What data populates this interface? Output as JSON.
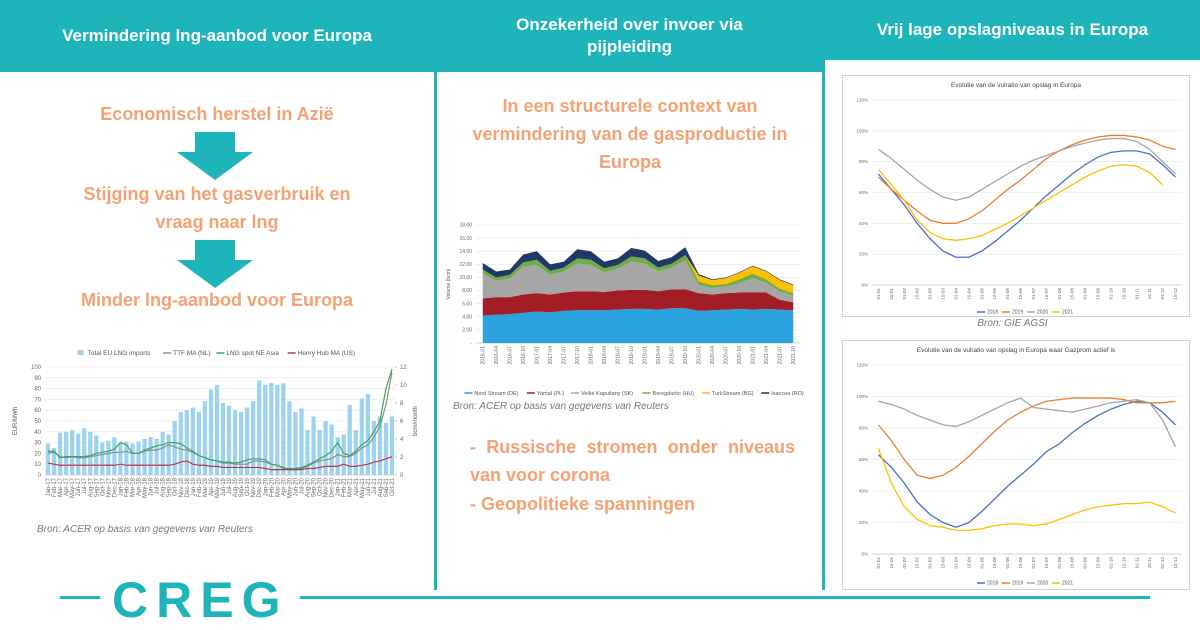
{
  "panels": [
    {
      "header": "Vermindering lng-aanbod voor Europa",
      "flow": [
        "Economisch herstel in Azië",
        "Stijging van het gasverbruik en vraag naar lng",
        "Minder lng-aanbod voor Europa"
      ],
      "source": "Bron: ACER op basis van gegevens van Reuters"
    },
    {
      "header": "Onzekerheid over invoer via pijpleiding",
      "intro": "In een structurele context van vermindering van de gasproductie in Europa",
      "source": "Bron: ACER op basis van gegevens van Reuters",
      "bullets": [
        "- Russische stromen onder niveaus van voor corona",
        "- Geopolitieke spanningen"
      ]
    },
    {
      "header": "Vrij lage opslagniveaus in Europa",
      "source": "Bron: GIE AGSI"
    }
  ],
  "logo": "CREG",
  "chart_data": [
    {
      "type": "bar_line",
      "legend": "top",
      "grid": true,
      "ylabel": "EUR/MWh",
      "y2label": "bcm/month",
      "ylim": [
        0,
        100
      ],
      "yticks": [
        0,
        10,
        20,
        30,
        40,
        50,
        60,
        70,
        80,
        90,
        100
      ],
      "y2lim": [
        0,
        12
      ],
      "y2ticks": [
        0,
        2,
        4,
        6,
        8,
        10,
        12
      ],
      "categories": [
        "Jan-17",
        "Feb-17",
        "Mar-17",
        "Apr-17",
        "May-17",
        "Jun-17",
        "Jul-17",
        "Aug-17",
        "Sep-17",
        "Oct-17",
        "Nov-17",
        "Dec-17",
        "Jan-18",
        "Feb-18",
        "Mar-18",
        "Apr-18",
        "May-18",
        "Jun-18",
        "Jul-18",
        "Aug-18",
        "Sep-18",
        "Oct-18",
        "Nov-18",
        "Dec-18",
        "Jan-19",
        "Feb-19",
        "Mar-19",
        "Apr-19",
        "May-19",
        "Jun-19",
        "Jul-19",
        "Aug-19",
        "Sep-19",
        "Oct-19",
        "Nov-19",
        "Dec-19",
        "Jan-20",
        "Feb-20",
        "Mar-20",
        "Apr-20",
        "May-20",
        "Jun-20",
        "Jul-20",
        "Aug-20",
        "Sep-20",
        "Oct-20",
        "Nov-20",
        "Dec-20",
        "Jan-21",
        "Feb-21",
        "Mar-21",
        "Apr-21",
        "May-21",
        "Jun-21",
        "Jul-21",
        "Aug-21",
        "Sep-21",
        "Oct-21"
      ],
      "series": [
        {
          "name": "Total EU LNG imports",
          "color": "#9dd3f0",
          "type": "bar",
          "axis": "y2",
          "values": [
            3.5,
            3,
            4.7,
            4.8,
            5,
            4.6,
            5.2,
            4.8,
            4.4,
            3.6,
            3.8,
            4.2,
            3.6,
            3.7,
            3.5,
            3.7,
            4,
            4.2,
            4,
            4.8,
            4.5,
            6,
            7,
            7.2,
            7.5,
            7,
            8.2,
            9.5,
            10,
            8,
            7.7,
            7.2,
            7,
            7.5,
            8.2,
            10.5,
            10,
            10.2,
            10,
            10.2,
            8.2,
            7,
            7.4,
            5,
            6.5,
            5,
            6,
            5.6,
            4.2,
            4.5,
            7.8,
            5,
            8.5,
            9,
            6,
            6.5,
            5.8,
            6.5
          ]
        },
        {
          "name": "TTF MA (NL)",
          "color": "#8c8c8c",
          "type": "line",
          "values": [
            20,
            21,
            17,
            16,
            17,
            16,
            16,
            17,
            18,
            19,
            20,
            21,
            21,
            22,
            20,
            20,
            22,
            23,
            23,
            25,
            28,
            26,
            24,
            23,
            21,
            18,
            16,
            14,
            13,
            11,
            11,
            10,
            10,
            10,
            13,
            13,
            12,
            10,
            9,
            7,
            5,
            5,
            6,
            8,
            11,
            13,
            14,
            15,
            19,
            17,
            17,
            20,
            25,
            28,
            35,
            45,
            65,
            95
          ]
        },
        {
          "name": "LNG spot NE Asia",
          "color": "#3aa85a",
          "type": "line",
          "values": [
            22,
            22,
            16,
            17,
            17,
            17,
            17,
            18,
            20,
            21,
            22,
            24,
            30,
            28,
            20,
            20,
            23,
            25,
            27,
            28,
            30,
            30,
            29,
            25,
            22,
            18,
            16,
            14,
            13,
            12,
            12,
            11,
            12,
            14,
            15,
            15,
            14,
            10,
            9,
            6,
            6,
            6,
            7,
            9,
            12,
            15,
            18,
            22,
            30,
            20,
            18,
            22,
            28,
            32,
            40,
            50,
            80,
            98
          ]
        },
        {
          "name": "Henry Hub MA (US)",
          "color": "#c0334b",
          "type": "line",
          "values": [
            11,
            10,
            9,
            9,
            9,
            9,
            9,
            9,
            9,
            9,
            9,
            9,
            10,
            9,
            9,
            9,
            9,
            9,
            9,
            9,
            9,
            10,
            12,
            13,
            10,
            9,
            9,
            8,
            8,
            7,
            7,
            7,
            7,
            7,
            7,
            7,
            6,
            5,
            5,
            5,
            5,
            5,
            5,
            6,
            6,
            7,
            8,
            8,
            8,
            10,
            8,
            8,
            9,
            10,
            12,
            13,
            15,
            17
          ]
        }
      ]
    },
    {
      "type": "stacked_area",
      "legend": "bottom",
      "grid": true,
      "ylabel": "Volume (bcm)",
      "ylim": [
        0,
        18
      ],
      "yticks": [
        {
          "value": 0,
          "label": "-"
        },
        {
          "value": 2,
          "label": "2.00"
        },
        {
          "value": 4,
          "label": "4.00"
        },
        {
          "value": 6,
          "label": "6.00"
        },
        {
          "value": 8,
          "label": "8.00"
        },
        {
          "value": 10,
          "label": "10.00"
        },
        {
          "value": 12,
          "label": "12.00"
        },
        {
          "value": 14,
          "label": "14.00"
        },
        {
          "value": 16,
          "label": "16.00"
        },
        {
          "value": 18,
          "label": "18.00"
        }
      ],
      "categories": [
        "2016-01",
        "2016-04",
        "2016-07",
        "2016-10",
        "2017-01",
        "2017-04",
        "2017-07",
        "2017-10",
        "2018-01",
        "2018-04",
        "2018-07",
        "2018-10",
        "2019-01",
        "2019-04",
        "2019-07",
        "2019-10",
        "2020-01",
        "2020-04",
        "2020-07",
        "2020-10",
        "2021-01",
        "2021-04",
        "2021-07",
        "2021-10"
      ],
      "series": [
        {
          "name": "Nord Stream (DE)",
          "color": "#2ba3de",
          "values": [
            4.2,
            4.3,
            4.4,
            4.6,
            4.8,
            4.7,
            4.9,
            5,
            5,
            5,
            5.1,
            5.2,
            5.2,
            5.1,
            5.3,
            5.3,
            4.9,
            5,
            5.1,
            5.2,
            5.1,
            5.2,
            5.1,
            5.0
          ]
        },
        {
          "name": "Yamal (PL)",
          "color": "#a31d24",
          "values": [
            2.6,
            2.7,
            2.6,
            2.8,
            2.8,
            2.7,
            2.8,
            2.9,
            2.9,
            2.8,
            2.9,
            2.9,
            2.9,
            2.8,
            2.9,
            2.9,
            2.7,
            2.4,
            2.5,
            2.5,
            2.6,
            2.5,
            1.5,
            1.2
          ]
        },
        {
          "name": "Velké Kapušany (SK)",
          "color": "#a6a6a6",
          "values": [
            3.8,
            2.5,
            2.8,
            4.2,
            4.3,
            3,
            3.2,
            4.2,
            4,
            3,
            3.3,
            4.3,
            4,
            3,
            3.3,
            4.4,
            1.2,
            1,
            1,
            1.4,
            2.2,
            1.5,
            1.2,
            1.0
          ]
        },
        {
          "name": "Beregdaróc (HU)",
          "color": "#70ad47",
          "values": [
            0.6,
            0.5,
            0.6,
            0.7,
            0.8,
            0.6,
            0.6,
            0.8,
            0.8,
            0.6,
            0.6,
            0.8,
            0.8,
            0.6,
            0.6,
            0.8,
            0.6,
            0.4,
            0.4,
            0.6,
            0.7,
            0.5,
            0.5,
            0.4
          ]
        },
        {
          "name": "TurkStream (BG)",
          "color": "#ffc000",
          "values": [
            0,
            0,
            0,
            0,
            0,
            0,
            0,
            0,
            0,
            0,
            0,
            0,
            0,
            0,
            0,
            0,
            0.9,
            0.8,
            0.9,
            1,
            1.1,
            1.2,
            1.3,
            1.2
          ]
        },
        {
          "name": "Isaccea (RO)",
          "color": "#1f3864",
          "values": [
            1,
            0.9,
            0.8,
            1.2,
            1.3,
            1,
            0.9,
            1.4,
            1.3,
            1,
            1,
            1.3,
            1.2,
            1,
            1,
            1.2,
            0.2,
            0.1,
            0.1,
            0.1,
            0.1,
            0.1,
            0.1,
            0.1
          ]
        }
      ]
    },
    {
      "type": "line",
      "legend": "bottom",
      "grid": true,
      "title": "Evolutie van de vulratio van opslag in Europa",
      "ylim": [
        0,
        120
      ],
      "yticks": [
        {
          "value": 0,
          "label": "0%"
        },
        {
          "value": 20,
          "label": "20%"
        },
        {
          "value": 40,
          "label": "40%"
        },
        {
          "value": 60,
          "label": "60%"
        },
        {
          "value": 80,
          "label": "80%"
        },
        {
          "value": 100,
          "label": "100%"
        },
        {
          "value": 120,
          "label": "120%"
        }
      ],
      "categories": [
        "01-01",
        "15-01",
        "01-02",
        "15-02",
        "01-03",
        "15-03",
        "01-04",
        "15-04",
        "01-05",
        "15-05",
        "01-06",
        "15-06",
        "01-07",
        "15-07",
        "01-08",
        "15-08",
        "01-09",
        "15-09",
        "01-10",
        "15-10",
        "01-11",
        "15-11",
        "01-12",
        "15-12"
      ],
      "series": [
        {
          "name": "2018",
          "color": "#4472c4",
          "values": [
            72,
            62,
            52,
            40,
            30,
            22,
            18,
            18,
            22,
            28,
            35,
            42,
            50,
            58,
            65,
            72,
            78,
            83,
            86,
            87,
            87,
            85,
            78,
            70
          ]
        },
        {
          "name": "2019",
          "color": "#ed7d31",
          "values": [
            70,
            62,
            55,
            48,
            42,
            40,
            40,
            43,
            48,
            55,
            62,
            68,
            75,
            82,
            87,
            91,
            94,
            96,
            97,
            97,
            96,
            94,
            90,
            88
          ]
        },
        {
          "name": "2020",
          "color": "#a5a5a5",
          "values": [
            88,
            82,
            75,
            68,
            62,
            57,
            55,
            57,
            62,
            67,
            72,
            77,
            81,
            84,
            87,
            90,
            92,
            94,
            95,
            95,
            93,
            88,
            80,
            72
          ]
        },
        {
          "name": "2021",
          "color": "#ffc000",
          "values": [
            75,
            65,
            55,
            42,
            34,
            30,
            29,
            30,
            32,
            36,
            40,
            45,
            50,
            55,
            60,
            65,
            70,
            74,
            77,
            78,
            77,
            73,
            65,
            null
          ]
        }
      ]
    },
    {
      "type": "line",
      "legend": "bottom",
      "grid": true,
      "title": "Evolutie van de vulratio van opslag in Europa waar Gazprom actief is",
      "ylim": [
        0,
        120
      ],
      "yticks": [
        {
          "value": 0,
          "label": "0%"
        },
        {
          "value": 20,
          "label": "20%"
        },
        {
          "value": 40,
          "label": "40%"
        },
        {
          "value": 60,
          "label": "60%"
        },
        {
          "value": 80,
          "label": "80%"
        },
        {
          "value": 100,
          "label": "100%"
        },
        {
          "value": 120,
          "label": "120%"
        }
      ],
      "categories": [
        "01-01",
        "15-01",
        "01-02",
        "15-02",
        "01-03",
        "15-03",
        "01-04",
        "15-04",
        "01-05",
        "15-05",
        "01-06",
        "15-06",
        "01-07",
        "15-07",
        "01-08",
        "15-08",
        "01-09",
        "15-09",
        "01-10",
        "15-10",
        "01-11",
        "15-11",
        "01-12",
        "15-12"
      ],
      "series": [
        {
          "name": "2018",
          "color": "#4472c4",
          "values": [
            63,
            55,
            45,
            33,
            25,
            20,
            17,
            20,
            27,
            35,
            43,
            50,
            57,
            65,
            70,
            77,
            83,
            88,
            92,
            95,
            97,
            96,
            90,
            82
          ]
        },
        {
          "name": "2019",
          "color": "#ed7d31",
          "values": [
            82,
            72,
            60,
            50,
            48,
            50,
            55,
            62,
            70,
            78,
            85,
            90,
            94,
            97,
            98,
            99,
            99,
            99,
            99,
            98,
            96,
            96,
            96,
            97
          ]
        },
        {
          "name": "2020",
          "color": "#a5a5a5",
          "values": [
            97,
            95,
            92,
            88,
            85,
            82,
            81,
            84,
            88,
            92,
            96,
            99,
            93,
            92,
            91,
            90,
            92,
            94,
            96,
            97,
            98,
            96,
            85,
            68
          ]
        },
        {
          "name": "2021",
          "color": "#ffc000",
          "values": [
            67,
            45,
            30,
            22,
            18,
            17,
            15,
            15,
            16,
            18,
            19,
            19,
            18,
            19,
            22,
            25,
            28,
            30,
            31,
            32,
            32,
            33,
            30,
            26
          ]
        }
      ]
    }
  ]
}
